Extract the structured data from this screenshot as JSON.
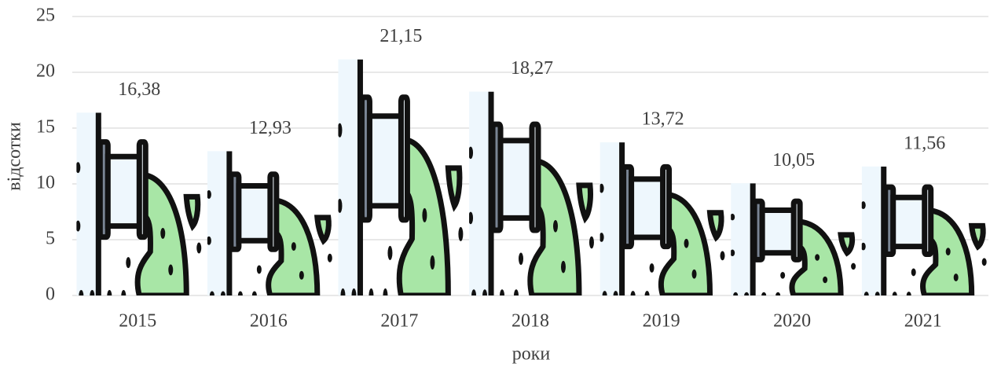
{
  "chart_data": {
    "type": "bar",
    "categories": [
      "2015",
      "2016",
      "2017",
      "2018",
      "2019",
      "2020",
      "2021"
    ],
    "values": [
      16.38,
      12.93,
      21.15,
      18.27,
      13.72,
      10.05,
      11.56
    ],
    "value_labels": [
      "16,38",
      "12,93",
      "21,15",
      "18,27",
      "13,72",
      "10,05",
      "11,56"
    ],
    "ylim": [
      0,
      25
    ],
    "yticks": [
      0,
      5,
      10,
      15,
      20,
      25
    ],
    "grid": true,
    "ylabel": "відсотки",
    "xlabel": "роки"
  }
}
